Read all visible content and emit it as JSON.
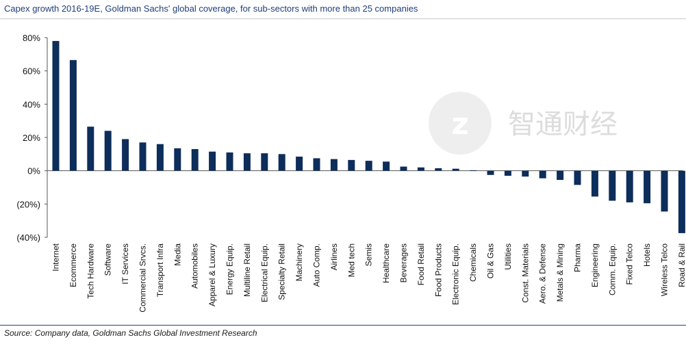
{
  "chart_data": {
    "type": "bar",
    "title": "Capex growth 2016-19E, Goldman Sachs' global coverage, for sub-sectors with more than 25 companies",
    "source": "Source:  Company data, Goldman Sachs Global Investment Research",
    "xlabel": "",
    "ylabel": "",
    "ylim": [
      -40,
      80
    ],
    "yticks": [
      80,
      60,
      40,
      20,
      0,
      -20,
      -40
    ],
    "ytick_labels": [
      "80%",
      "60%",
      "40%",
      "20%",
      "0%",
      "(20%)",
      "(40%)"
    ],
    "bar_color": "#0d2d5a",
    "categories": [
      "Internet",
      "Ecommerce",
      "Tech Hardware",
      "Software",
      "IT Services",
      "Commercial Srvcs.",
      "Transport Infra",
      "Media",
      "Automobiles",
      "Apparel & Luxury",
      "Energy Equip.",
      "Multiline Retail",
      "Electrical Equip.",
      "Specialty Retail",
      "Machinery",
      "Auto Comp.",
      "Airlines",
      "Med tech",
      "Semis",
      "Healthcare",
      "Beverages",
      "Food Retail",
      "Food Products",
      "Electronic Equip.",
      "Chemicals",
      "Oil & Gas",
      "Utilities",
      "Const. Materials",
      "Aero. & Defense",
      "Metals & Mining",
      "Pharma",
      "Engineering",
      "Comm. Equip.",
      "Fixed Telco",
      "Hotels",
      "Wireless Telco",
      "Road & Rail"
    ],
    "values": [
      78,
      66.5,
      26.5,
      24,
      19,
      17,
      16,
      13.5,
      13,
      11.5,
      11,
      10.5,
      10.5,
      10,
      8.5,
      7.5,
      7,
      6.5,
      6,
      5.5,
      2.5,
      2,
      1.5,
      1.2,
      0.3,
      -2.5,
      -3,
      -3.5,
      -4.5,
      -5.5,
      -8.5,
      -15.5,
      -18,
      -19,
      -19.5,
      -24.5,
      -37.5
    ]
  },
  "watermark": {
    "text": "智通财经",
    "icon": "zhitong-logo-icon"
  }
}
